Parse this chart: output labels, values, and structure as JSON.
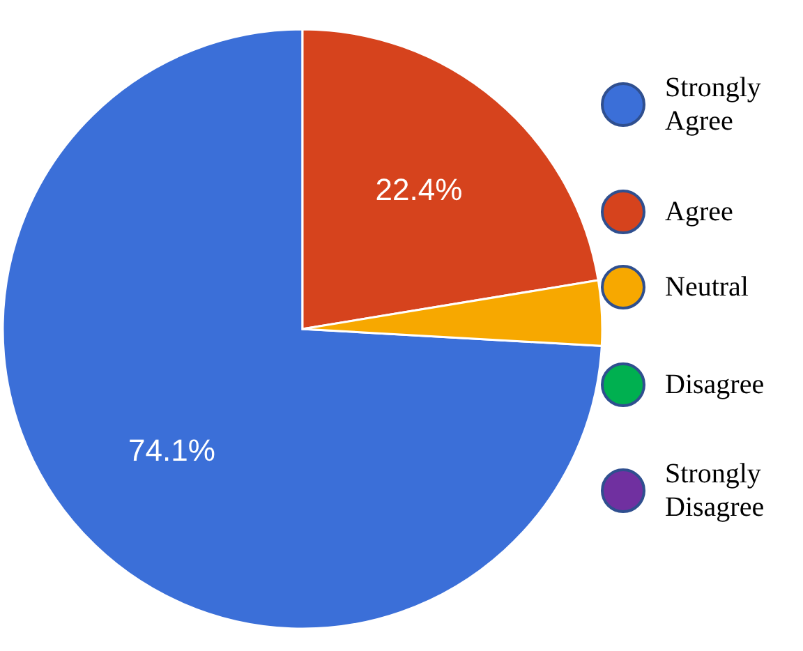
{
  "chart_data": {
    "type": "pie",
    "categories": [
      "Strongly Agree",
      "Agree",
      "Neutral",
      "Disagree",
      "Strongly Disagree"
    ],
    "values": [
      74.1,
      22.4,
      3.5,
      0,
      0
    ],
    "colors": [
      "#3b6fd8",
      "#d6431d",
      "#f7a800",
      "#00b050",
      "#7030a0"
    ],
    "value_labels": [
      "74.1%",
      "22.4%",
      null,
      null,
      null
    ],
    "legend": "right"
  }
}
